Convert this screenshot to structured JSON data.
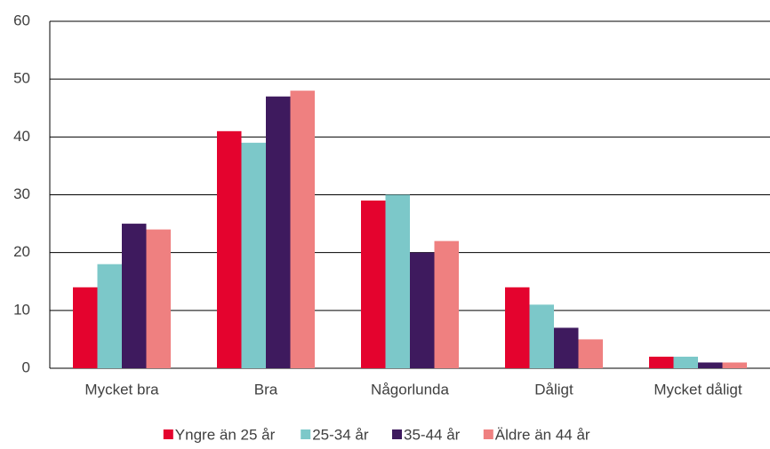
{
  "chart_data": {
    "type": "bar",
    "categories": [
      "Mycket bra",
      "Bra",
      "Någorlunda",
      "Dåligt",
      "Mycket dåligt"
    ],
    "series": [
      {
        "name": "Yngre än 25 år",
        "color": "#e4032e",
        "values": [
          14,
          41,
          29,
          14,
          2
        ]
      },
      {
        "name": "25-34 år",
        "color": "#7cc8c9",
        "values": [
          18,
          39,
          30,
          11,
          2
        ]
      },
      {
        "name": "35-44 år",
        "color": "#3e1a5e",
        "values": [
          25,
          47,
          20,
          7,
          1
        ]
      },
      {
        "name": "Äldre än 44 år",
        "color": "#ef8080",
        "values": [
          24,
          48,
          22,
          5,
          1
        ]
      }
    ],
    "ylim": [
      0,
      60
    ],
    "yticks": [
      0,
      10,
      20,
      30,
      40,
      50,
      60
    ],
    "grid": true,
    "legend": "bottom"
  }
}
